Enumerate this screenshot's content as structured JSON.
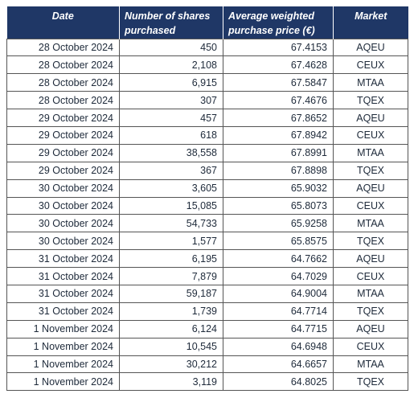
{
  "table": {
    "headers": {
      "date": "Date",
      "shares": "Number of shares purchased",
      "price": "Average weighted purchase price (€)",
      "market": "Market"
    },
    "rows": [
      {
        "date": "28 October 2024",
        "shares": "450",
        "price": "67.4153",
        "market": "AQEU"
      },
      {
        "date": "28 October 2024",
        "shares": "2,108",
        "price": "67.4628",
        "market": "CEUX"
      },
      {
        "date": "28 October 2024",
        "shares": "6,915",
        "price": "67.5847",
        "market": "MTAA"
      },
      {
        "date": "28 October 2024",
        "shares": "307",
        "price": "67.4676",
        "market": "TQEX"
      },
      {
        "date": "29 October 2024",
        "shares": "457",
        "price": "67.8652",
        "market": "AQEU"
      },
      {
        "date": "29 October 2024",
        "shares": "618",
        "price": "67.8942",
        "market": "CEUX"
      },
      {
        "date": "29 October 2024",
        "shares": "38,558",
        "price": "67.8991",
        "market": "MTAA"
      },
      {
        "date": "29 October 2024",
        "shares": "367",
        "price": "67.8898",
        "market": "TQEX"
      },
      {
        "date": "30 October 2024",
        "shares": "3,605",
        "price": "65.9032",
        "market": "AQEU"
      },
      {
        "date": "30 October 2024",
        "shares": "15,085",
        "price": "65.8073",
        "market": "CEUX"
      },
      {
        "date": "30 October 2024",
        "shares": "54,733",
        "price": "65.9258",
        "market": "MTAA"
      },
      {
        "date": "30 October 2024",
        "shares": "1,577",
        "price": "65.8575",
        "market": "TQEX"
      },
      {
        "date": "31 October 2024",
        "shares": "6,195",
        "price": "64.7662",
        "market": "AQEU"
      },
      {
        "date": "31 October 2024",
        "shares": "7,879",
        "price": "64.7029",
        "market": "CEUX"
      },
      {
        "date": "31 October 2024",
        "shares": "59,187",
        "price": "64.9004",
        "market": "MTAA"
      },
      {
        "date": "31 October 2024",
        "shares": "1,739",
        "price": "64.7714",
        "market": "TQEX"
      },
      {
        "date": "1 November 2024",
        "shares": "6,124",
        "price": "64.7715",
        "market": "AQEU"
      },
      {
        "date": "1 November 2024",
        "shares": "10,545",
        "price": "64.6948",
        "market": "CEUX"
      },
      {
        "date": "1 November 2024",
        "shares": "30,212",
        "price": "64.6657",
        "market": "MTAA"
      },
      {
        "date": "1 November 2024",
        "shares": "3,119",
        "price": "64.8025",
        "market": "TQEX"
      }
    ]
  },
  "colors": {
    "header_background": "#1f3766",
    "header_text": "#ffffff",
    "border": "#555555",
    "text": "#1e2a3a"
  }
}
